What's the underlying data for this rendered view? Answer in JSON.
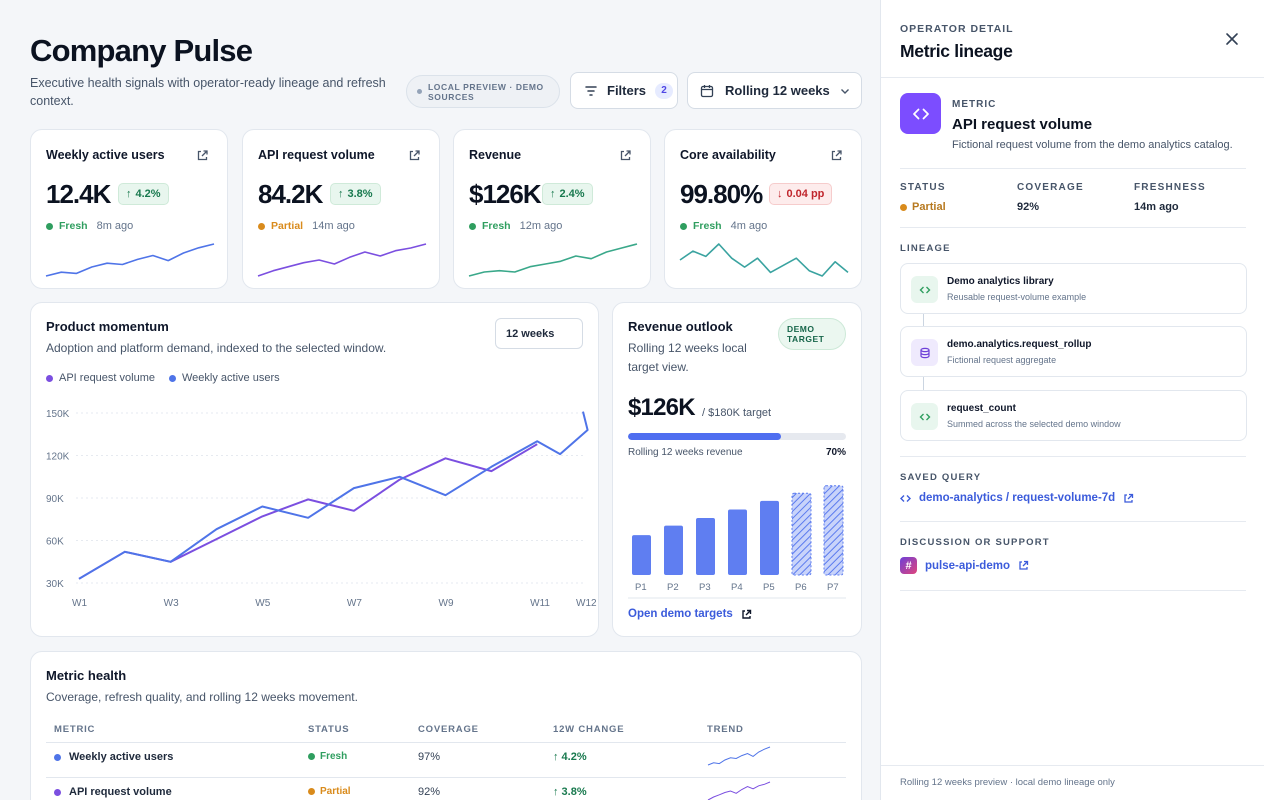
{
  "header": {
    "title": "Company Pulse",
    "subtitle": "Executive health signals with operator-ready lineage and refresh context.",
    "source_pill": "LOCAL PREVIEW · DEMO SOURCES",
    "filters_label": "Filters",
    "filters_count": "2",
    "range_label": "Rolling 12 weeks"
  },
  "kpis": [
    {
      "label": "Weekly active users",
      "value": "12.4K",
      "delta": "4.2%",
      "direction": "up",
      "status": "Fresh",
      "status_color": "#2f9e5f",
      "ago": "8m ago",
      "spark_color": "#4f74e8",
      "spark": [
        3,
        6,
        5,
        10,
        13,
        12,
        16,
        19,
        15,
        21,
        25,
        28
      ]
    },
    {
      "label": "API request volume",
      "value": "84.2K",
      "delta": "3.8%",
      "direction": "up",
      "status": "Partial",
      "status_color": "#d98b1c",
      "ago": "14m ago",
      "spark_color": "#7b4fe0",
      "spark": [
        2,
        6,
        9,
        12,
        14,
        11,
        16,
        20,
        17,
        21,
        23,
        26
      ]
    },
    {
      "label": "Revenue",
      "value": "$126K",
      "delta": "2.4%",
      "direction": "up",
      "status": "Fresh",
      "status_color": "#2f9e5f",
      "ago": "12m ago",
      "spark_color": "#3aa88a",
      "spark": [
        2,
        5,
        6,
        5,
        9,
        11,
        13,
        17,
        15,
        20,
        23,
        26
      ]
    },
    {
      "label": "Core availability",
      "value": "99.80%",
      "delta": "0.04 pp",
      "direction": "down",
      "status": "Fresh",
      "status_color": "#2f9e5f",
      "ago": "4m ago",
      "spark_color": "#3aa3a0",
      "spark": [
        22,
        27,
        24,
        31,
        23,
        18,
        23,
        15,
        19,
        23,
        16,
        13,
        21,
        15
      ]
    }
  ],
  "momentum": {
    "title": "Product momentum",
    "subtitle": "Adoption and platform demand, indexed to the selected window.",
    "window_select": "12 weeks"
  },
  "revenue_outlook": {
    "title": "Revenue outlook",
    "subtitle": "Rolling 12 weeks local target view.",
    "badge": "DEMO TARGET",
    "value": "$126K",
    "target": "/ $180K target",
    "progress_label": "Rolling 12 weeks revenue",
    "progress_pct": "70%",
    "progress_fraction": 0.7,
    "link": "Open demo targets"
  },
  "metric_health": {
    "title": "Metric health",
    "subtitle": "Coverage, refresh quality, and rolling 12 weeks movement.",
    "columns": [
      "METRIC",
      "STATUS",
      "COVERAGE",
      "12W CHANGE",
      "TREND"
    ],
    "rows": [
      {
        "metric": "Weekly active users",
        "dot": "#4f74e8",
        "status": "Fresh",
        "status_color": "#2f9e5f",
        "coverage": "97%",
        "change": "↑ 4.2%"
      },
      {
        "metric": "API request volume",
        "dot": "#7b4fe0",
        "status": "Partial",
        "status_color": "#d98b1c",
        "coverage": "92%",
        "change": "↑ 3.8%"
      }
    ]
  },
  "panel": {
    "kicker": "OPERATOR DETAIL",
    "title": "Metric lineage",
    "metric_kicker": "METRIC",
    "metric_name": "API request volume",
    "metric_desc": "Fictional request volume from the demo analytics catalog.",
    "stats": [
      {
        "label": "STATUS",
        "value": "Partial"
      },
      {
        "label": "COVERAGE",
        "value": "92%"
      },
      {
        "label": "FRESHNESS",
        "value": "14m ago"
      }
    ],
    "lineage_label": "LINEAGE",
    "lineage": [
      {
        "title": "Demo analytics library",
        "sub": "Reusable request-volume example",
        "icon": "code-icon"
      },
      {
        "title": "demo.analytics.request_rollup",
        "sub": "Fictional request aggregate",
        "icon": "database-icon"
      },
      {
        "title": "request_count",
        "sub": "Summed across the selected demo window",
        "icon": "code-icon"
      }
    ],
    "saved_query_label": "SAVED QUERY",
    "saved_query": "demo-analytics / request-volume-7d",
    "discussion_label": "DISCUSSION OR SUPPORT",
    "discussion_link": "pulse-api-demo",
    "footer": "Rolling 12 weeks preview · local demo lineage only"
  },
  "chart_data": [
    {
      "type": "line",
      "title": "Product momentum",
      "x": [
        "W1",
        "W2",
        "W3",
        "W4",
        "W5",
        "W6",
        "W7",
        "W8",
        "W9",
        "W10",
        "W11",
        "W12"
      ],
      "x_tick_labels": [
        "W1",
        "W3",
        "W5",
        "W7",
        "W9",
        "W11",
        "W12"
      ],
      "y_tick_labels": [
        "30K",
        "60K",
        "90K",
        "120K",
        "150K"
      ],
      "ylim": [
        30000,
        150000
      ],
      "legend": "top-left",
      "grid": true,
      "series": [
        {
          "name": "API request volume",
          "color": "#7b4fe0",
          "values": [
            33000,
            52000,
            45000,
            61000,
            77000,
            89000,
            81000,
            103000,
            118000,
            109000,
            128000,
            null
          ]
        },
        {
          "name": "Weekly active users",
          "color": "#4f74e8",
          "values": [
            33000,
            52000,
            45000,
            68000,
            84000,
            76000,
            97000,
            105000,
            92000,
            112000,
            130000,
            null
          ]
        }
      ],
      "series_tail": {
        "Weekly active users": [
          [
            "W10.5",
            121000
          ],
          [
            "W11.5",
            138000
          ],
          [
            "W12",
            151000
          ]
        ]
      }
    },
    {
      "type": "bar",
      "title": "Revenue outlook",
      "categories": [
        "P1",
        "P2",
        "P3",
        "P4",
        "P5",
        "P6",
        "P7"
      ],
      "values": [
        42,
        52,
        60,
        69,
        78,
        86,
        94
      ],
      "projected": [
        false,
        false,
        false,
        false,
        false,
        true,
        true
      ]
    }
  ]
}
